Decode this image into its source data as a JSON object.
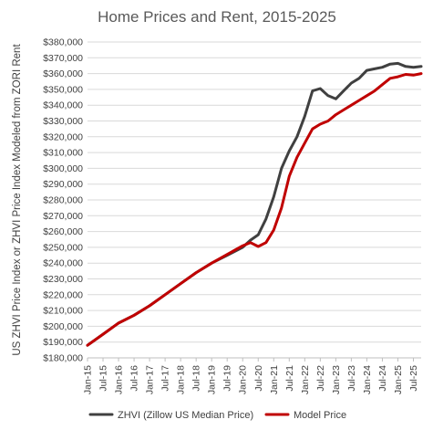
{
  "chart_data": {
    "type": "line",
    "title": "Home Prices and Rent, 2015-2025",
    "ylabel": "US ZHVI Price Index or ZHVI Price Index Modeled from ZORI Rent",
    "xlabel": "",
    "ylim": [
      180000,
      380000
    ],
    "y_ticks": [
      "$180,000",
      "$190,000",
      "$200,000",
      "$210,000",
      "$220,000",
      "$230,000",
      "$240,000",
      "$250,000",
      "$260,000",
      "$270,000",
      "$280,000",
      "$290,000",
      "$300,000",
      "$310,000",
      "$320,000",
      "$330,000",
      "$340,000",
      "$350,000",
      "$360,000",
      "$370,000",
      "$380,000"
    ],
    "x_ticks": [
      "Jan-15",
      "Jul-15",
      "Jan-16",
      "Jul-16",
      "Jan-17",
      "Jul-17",
      "Jan-18",
      "Jul-18",
      "Jan-19",
      "Jul-19",
      "Jan-20",
      "Jul-20",
      "Jan-21",
      "Jul-21",
      "Jan-22",
      "Jul-22",
      "Jan-23",
      "Jul-23",
      "Jan-24",
      "Jul-24",
      "Jan-25",
      "Jul-25"
    ],
    "x_range": [
      "Jan-15",
      "Oct-25"
    ],
    "grid": "horizontal",
    "legend_position": "bottom",
    "series": [
      {
        "name": "ZHVI (Zillow US Median Price)",
        "color": "#404040",
        "points": [
          [
            "Jan-15",
            188000
          ],
          [
            "Jul-15",
            195000
          ],
          [
            "Jan-16",
            202000
          ],
          [
            "Jul-16",
            207000
          ],
          [
            "Jan-17",
            213000
          ],
          [
            "Jul-17",
            220000
          ],
          [
            "Jan-18",
            227000
          ],
          [
            "Jul-18",
            234000
          ],
          [
            "Jan-19",
            240000
          ],
          [
            "Jul-19",
            245000
          ],
          [
            "Jan-20",
            250000
          ],
          [
            "Apr-20",
            254500
          ],
          [
            "Jul-20",
            258000
          ],
          [
            "Oct-20",
            268000
          ],
          [
            "Jan-21",
            282000
          ],
          [
            "Apr-21",
            300000
          ],
          [
            "Jul-21",
            311000
          ],
          [
            "Oct-21",
            320000
          ],
          [
            "Jan-22",
            333000
          ],
          [
            "Apr-22",
            349000
          ],
          [
            "Jul-22",
            350500
          ],
          [
            "Oct-22",
            346000
          ],
          [
            "Jan-23",
            344000
          ],
          [
            "Apr-23",
            349000
          ],
          [
            "Jul-23",
            354000
          ],
          [
            "Oct-23",
            357000
          ],
          [
            "Jan-24",
            362000
          ],
          [
            "Apr-24",
            363000
          ],
          [
            "Jul-24",
            364000
          ],
          [
            "Oct-24",
            366000
          ],
          [
            "Jan-25",
            366500
          ],
          [
            "Apr-25",
            364500
          ],
          [
            "Jul-25",
            364000
          ],
          [
            "Oct-25",
            364500
          ]
        ]
      },
      {
        "name": "Model Price",
        "color": "#c00000",
        "points": [
          [
            "Jan-15",
            188000
          ],
          [
            "Jul-15",
            195000
          ],
          [
            "Jan-16",
            202000
          ],
          [
            "Jul-16",
            207000
          ],
          [
            "Jan-17",
            213000
          ],
          [
            "Jul-17",
            220000
          ],
          [
            "Jan-18",
            227000
          ],
          [
            "Jul-18",
            234000
          ],
          [
            "Jan-19",
            240000
          ],
          [
            "Jul-19",
            245500
          ],
          [
            "Jan-20",
            251000
          ],
          [
            "Apr-20",
            253000
          ],
          [
            "Jul-20",
            250500
          ],
          [
            "Oct-20",
            253000
          ],
          [
            "Jan-21",
            261000
          ],
          [
            "Apr-21",
            275000
          ],
          [
            "Jul-21",
            295000
          ],
          [
            "Oct-21",
            307000
          ],
          [
            "Jan-22",
            316000
          ],
          [
            "Apr-22",
            325000
          ],
          [
            "Jul-22",
            328000
          ],
          [
            "Oct-22",
            330000
          ],
          [
            "Jan-23",
            334000
          ],
          [
            "Apr-23",
            337000
          ],
          [
            "Jul-23",
            340000
          ],
          [
            "Oct-23",
            343000
          ],
          [
            "Jan-24",
            346000
          ],
          [
            "Apr-24",
            349000
          ],
          [
            "Jul-24",
            353000
          ],
          [
            "Oct-24",
            357000
          ],
          [
            "Jan-25",
            358000
          ],
          [
            "Apr-25",
            359500
          ],
          [
            "Jul-25",
            359000
          ],
          [
            "Oct-25",
            360000
          ]
        ]
      }
    ]
  }
}
